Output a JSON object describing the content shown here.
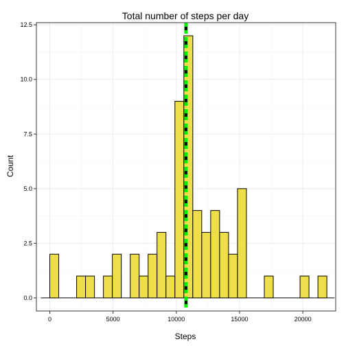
{
  "chart_data": {
    "type": "bar",
    "title": "Total number of steps per day",
    "xlabel": "Steps",
    "ylabel": "Count",
    "xlim": [
      -1060,
      22600
    ],
    "ylim": [
      -0.6,
      12.6
    ],
    "x_ticks": [
      0,
      5000,
      10000,
      15000,
      20000
    ],
    "x_tick_labels": [
      "0",
      "5000",
      "10000",
      "15000",
      "20000"
    ],
    "y_ticks": [
      0,
      2.5,
      5,
      7.5,
      10,
      12.5
    ],
    "y_tick_labels": [
      "0.0",
      "2.5",
      "5.0",
      "7.5",
      "10.0",
      "12.5"
    ],
    "baseline_range": [
      -706,
      22500
    ],
    "bin_width": 706.5,
    "bins": [
      {
        "x": 0,
        "count": 0
      },
      {
        "x": 353,
        "count": 2
      },
      {
        "x": 1060,
        "count": 0
      },
      {
        "x": 1766,
        "count": 0
      },
      {
        "x": 2473,
        "count": 1
      },
      {
        "x": 3179,
        "count": 1
      },
      {
        "x": 3886,
        "count": 0
      },
      {
        "x": 4592,
        "count": 1
      },
      {
        "x": 5299,
        "count": 2
      },
      {
        "x": 6005,
        "count": 0
      },
      {
        "x": 6712,
        "count": 2
      },
      {
        "x": 7418,
        "count": 1
      },
      {
        "x": 8125,
        "count": 2
      },
      {
        "x": 8831,
        "count": 3
      },
      {
        "x": 9538,
        "count": 1
      },
      {
        "x": 10244,
        "count": 9
      },
      {
        "x": 10951,
        "count": 12
      },
      {
        "x": 11657,
        "count": 4
      },
      {
        "x": 12364,
        "count": 3
      },
      {
        "x": 13070,
        "count": 4
      },
      {
        "x": 13777,
        "count": 3
      },
      {
        "x": 14483,
        "count": 2
      },
      {
        "x": 15190,
        "count": 5
      },
      {
        "x": 15896,
        "count": 0
      },
      {
        "x": 16603,
        "count": 0
      },
      {
        "x": 17309,
        "count": 1
      },
      {
        "x": 18016,
        "count": 0
      },
      {
        "x": 18722,
        "count": 0
      },
      {
        "x": 19429,
        "count": 0
      },
      {
        "x": 20135,
        "count": 1
      },
      {
        "x": 20842,
        "count": 0
      },
      {
        "x": 21548,
        "count": 1
      }
    ],
    "reference_lines": [
      {
        "stat": "mean",
        "x": 10766,
        "color": "#00ee00",
        "style": "long-dash"
      },
      {
        "stat": "median",
        "x": 10765,
        "color": "#000000",
        "style": "dotted"
      }
    ],
    "grid": true,
    "legend": "none"
  },
  "colors": {
    "bar_fill": "#eedf4a",
    "bar_outline": "#000000",
    "mean_line": "#00ee00",
    "median_line": "#000000",
    "panel_border": "#333333"
  }
}
